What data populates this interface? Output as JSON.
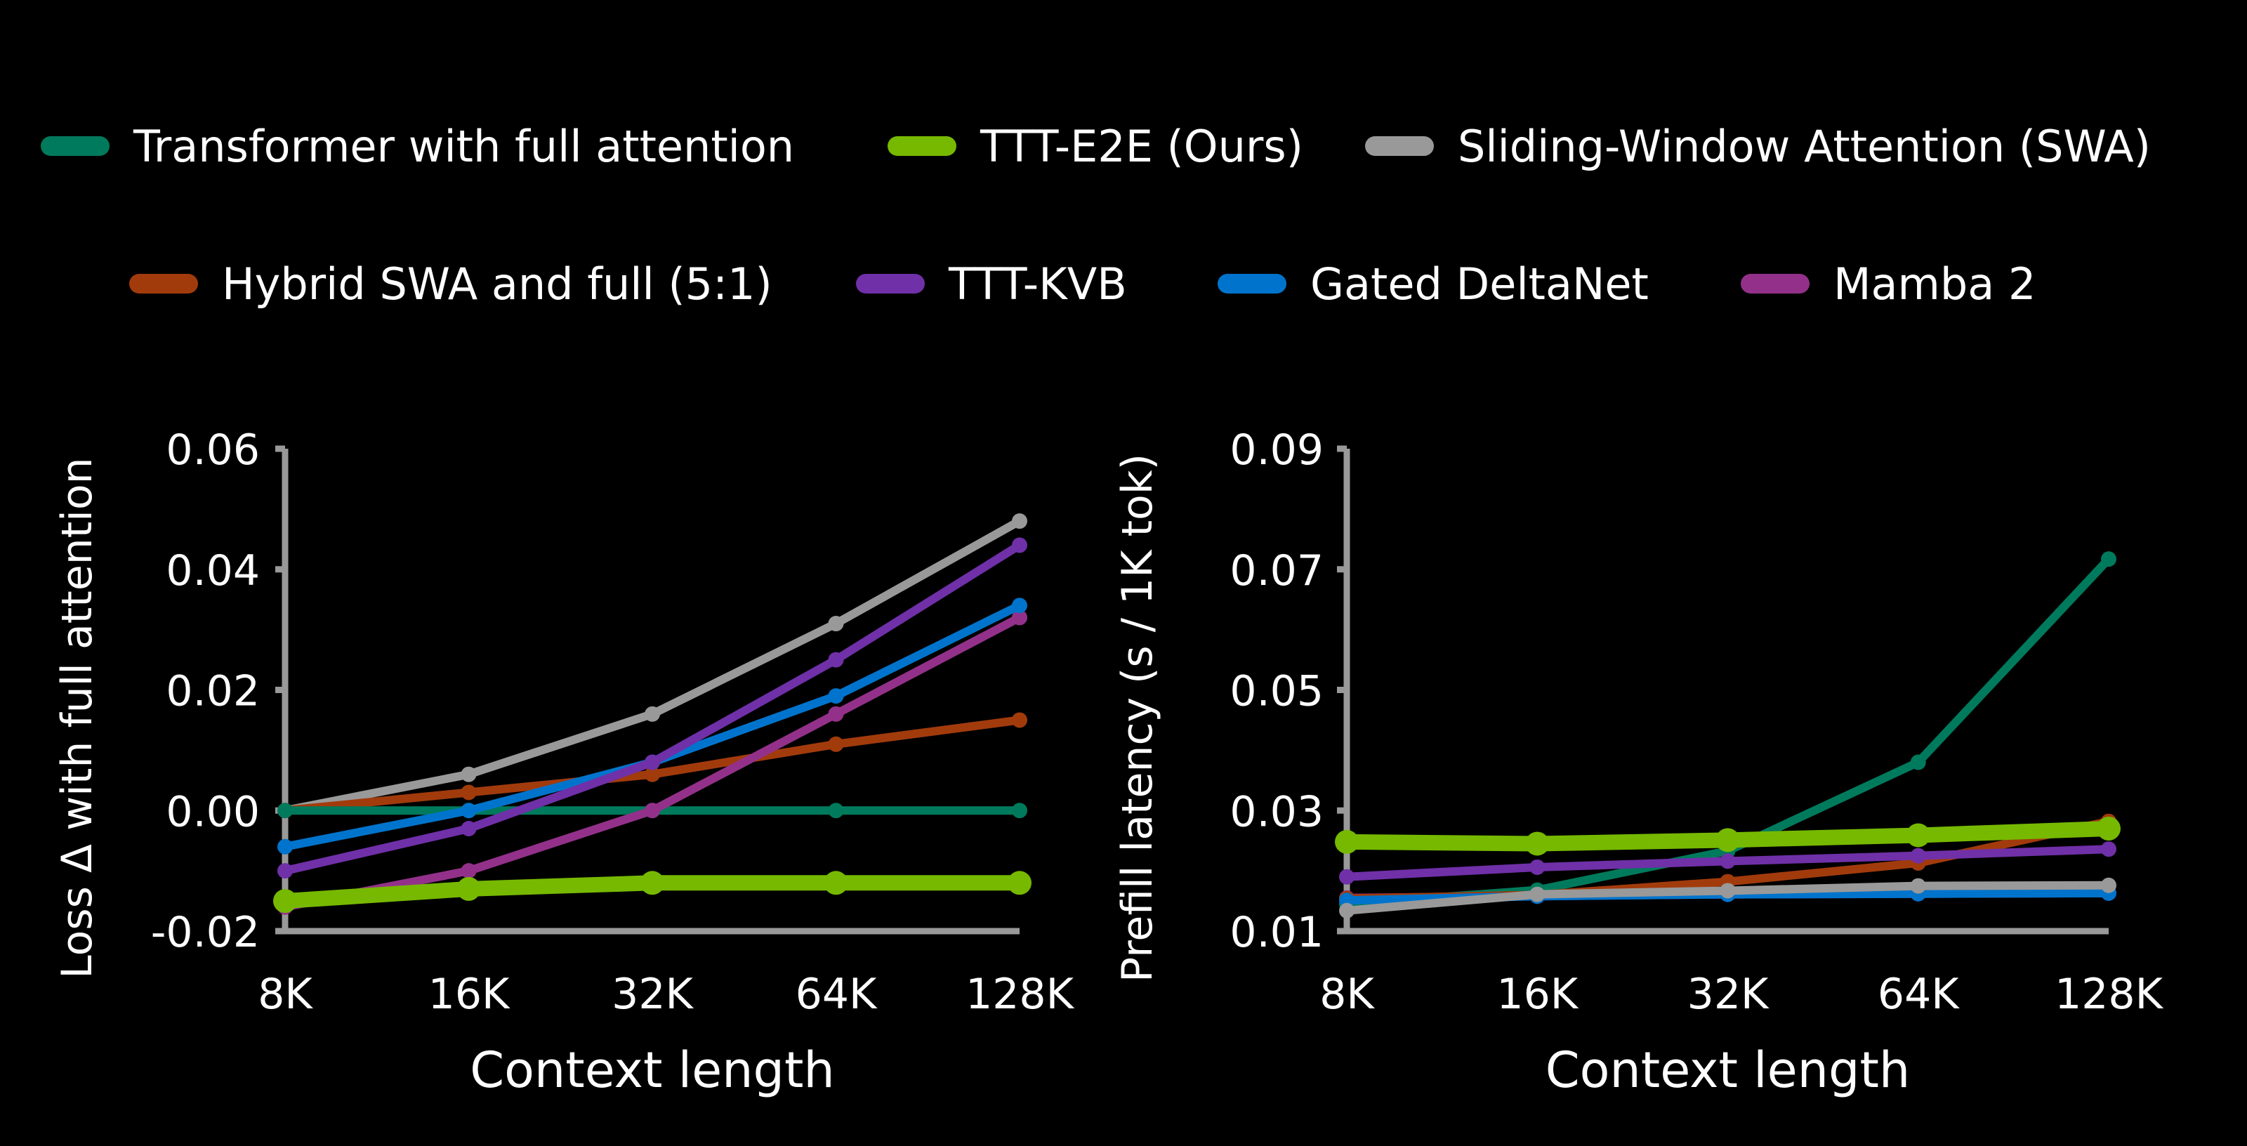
{
  "legend": [
    {
      "name": "Transformer with full attention",
      "color": "#007a5c"
    },
    {
      "name": "TTT-E2E (Ours)",
      "color": "#76b900"
    },
    {
      "name": "Sliding-Window Attention (SWA)",
      "color": "#999999"
    },
    {
      "name": "Hybrid SWA and full (5:1)",
      "color": "#a23b0c"
    },
    {
      "name": "TTT-KVB",
      "color": "#7030a8"
    },
    {
      "name": "Gated DeltaNet",
      "color": "#0074cc"
    },
    {
      "name": "Mamba 2",
      "color": "#93318a"
    }
  ],
  "chart_data": [
    {
      "type": "line",
      "xlabel": "Context length",
      "ylabel": "Loss Δ with full attention",
      "categories": [
        "8K",
        "16K",
        "32K",
        "64K",
        "128K"
      ],
      "ylim": [
        -0.02,
        0.06
      ],
      "yticks": [
        "-0.02",
        "0.00",
        "0.02",
        "0.04",
        "0.06"
      ],
      "grid": false,
      "series": [
        {
          "name": "Sliding-Window Attention (SWA)",
          "color": "#999999",
          "values": [
            0.0,
            0.006,
            0.016,
            0.031,
            0.048
          ]
        },
        {
          "name": "Hybrid SWA and full (5:1)",
          "color": "#a23b0c",
          "values": [
            0.0,
            0.003,
            0.006,
            0.011,
            0.015
          ]
        },
        {
          "name": "Transformer with full attention",
          "color": "#007a5c",
          "values": [
            0.0,
            0.0,
            0.0,
            0.0,
            0.0
          ]
        },
        {
          "name": "Mamba 2",
          "color": "#93318a",
          "values": [
            -0.016,
            -0.01,
            0.0,
            0.016,
            0.032
          ]
        },
        {
          "name": "Gated DeltaNet",
          "color": "#0074cc",
          "values": [
            -0.006,
            0.0,
            0.008,
            0.019,
            0.034
          ]
        },
        {
          "name": "TTT-KVB",
          "color": "#7030a8",
          "values": [
            -0.01,
            -0.003,
            0.008,
            0.025,
            0.044
          ]
        },
        {
          "name": "TTT-E2E (Ours)",
          "color": "#76b900",
          "values": [
            -0.015,
            -0.013,
            -0.012,
            -0.012,
            -0.012
          ]
        }
      ]
    },
    {
      "type": "line",
      "xlabel": "Context length",
      "ylabel": "Prefill latency (s / 1K tok)",
      "categories": [
        "8K",
        "16K",
        "32K",
        "64K",
        "128K"
      ],
      "ylim": [
        0.01,
        0.09
      ],
      "yticks": [
        "0.01",
        "0.03",
        "0.05",
        "0.07",
        "0.09"
      ],
      "grid": false,
      "series": [
        {
          "name": "Transformer with full attention",
          "color": "#007a5c",
          "values": [
            0.0145,
            0.0168,
            0.0233,
            0.038,
            0.0717
          ]
        },
        {
          "name": "Mamba 2",
          "color": "#93318a",
          "values": [
            0.0155,
            0.0158,
            0.0161,
            0.0162,
            0.0163
          ]
        },
        {
          "name": "Hybrid SWA and full (5:1)",
          "color": "#a23b0c",
          "values": [
            0.0154,
            0.016,
            0.0182,
            0.0213,
            0.0282
          ]
        },
        {
          "name": "Gated DeltaNet",
          "color": "#0074cc",
          "values": [
            0.0151,
            0.0158,
            0.0161,
            0.0162,
            0.0163
          ]
        },
        {
          "name": "Sliding-Window Attention (SWA)",
          "color": "#999999",
          "values": [
            0.0134,
            0.0161,
            0.0167,
            0.0175,
            0.0176
          ]
        },
        {
          "name": "TTT-KVB",
          "color": "#7030a8",
          "values": [
            0.019,
            0.0206,
            0.0216,
            0.0225,
            0.0236
          ]
        },
        {
          "name": "TTT-E2E (Ours)",
          "color": "#76b900",
          "values": [
            0.0248,
            0.0245,
            0.0251,
            0.0259,
            0.027
          ]
        }
      ]
    }
  ]
}
